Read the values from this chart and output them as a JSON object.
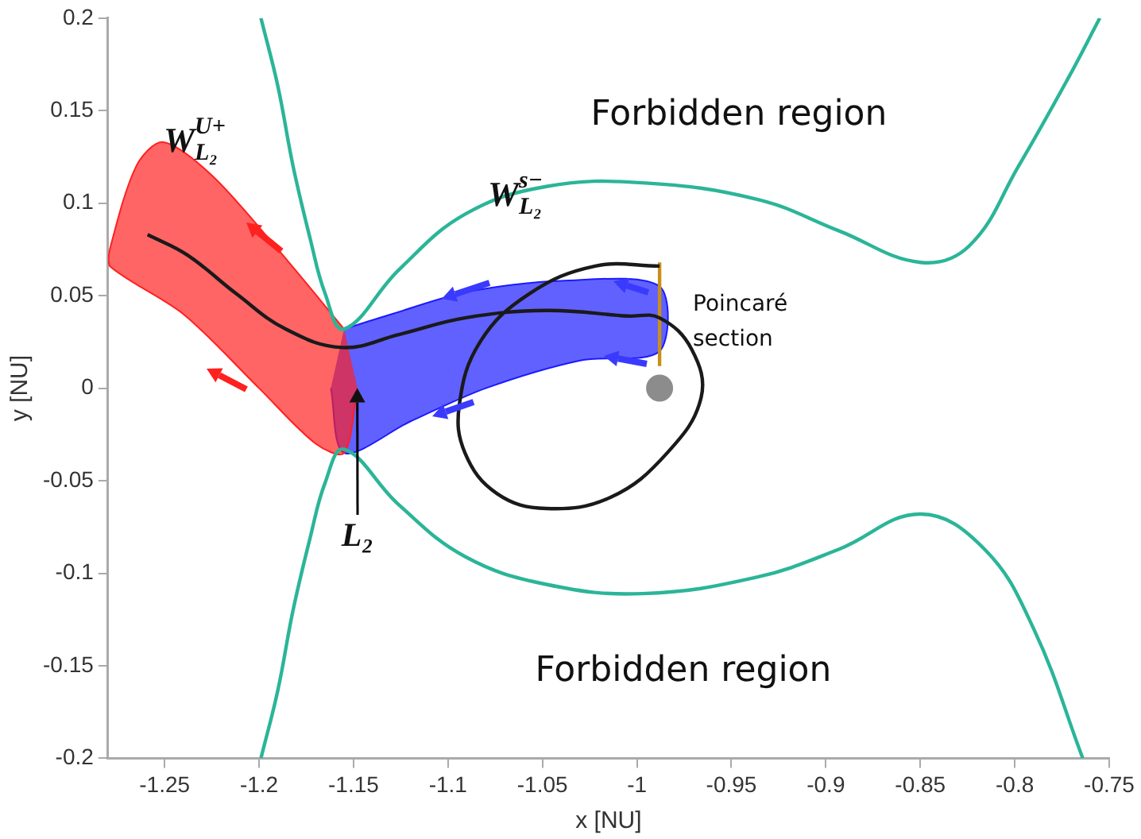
{
  "chart_data": {
    "type": "line",
    "xlabel": "x [NU]",
    "ylabel": "y [NU]",
    "xlim": [
      -1.28,
      -0.75
    ],
    "xticks": [
      -1.25,
      -1.2,
      -1.15,
      -1.1,
      -1.05,
      -1,
      -0.95,
      -0.9,
      -0.85,
      -0.8,
      -0.75
    ],
    "ylim": [
      -0.2,
      0.2
    ],
    "yticks": [
      -0.2,
      -0.15,
      -0.1,
      -0.05,
      0,
      0.05,
      0.1,
      0.15,
      0.2
    ],
    "grid": false,
    "legend": false,
    "series": [
      {
        "type": "area",
        "color": "#ff2020",
        "x": [
          -1.155,
          -1.19,
          -1.225,
          -1.251,
          -1.265,
          -1.279,
          -1.279,
          -1.24,
          -1.2,
          -1.17,
          -1.155,
          -1.148
        ],
        "values": [
          0.032,
          0.075,
          0.115,
          0.133,
          0.12,
          0.075,
          0.066,
          0.04,
          0.0,
          -0.03,
          -0.035,
          0.0
        ]
      },
      {
        "type": "area",
        "color": "#1a1aff",
        "x": [
          -1.155,
          -1.13,
          -1.09,
          -1.04,
          -0.988,
          -0.988,
          -1.03,
          -1.08,
          -1.12,
          -1.155,
          -1.162
        ],
        "values": [
          0.032,
          0.04,
          0.052,
          0.058,
          0.055,
          0.02,
          0.015,
          0.0,
          -0.018,
          -0.035,
          0.0
        ]
      },
      {
        "type": "line",
        "color": "#2bb598",
        "x": [
          -1.199,
          -1.19,
          -1.182,
          -1.173,
          -1.165,
          -1.155,
          -1.126,
          -1.091,
          -1.048,
          -0.997,
          -0.936,
          -0.893,
          -0.85,
          -0.824,
          -0.798,
          -0.772,
          -0.755
        ],
        "values": [
          0.2,
          0.163,
          0.12,
          0.081,
          0.051,
          0.032,
          0.064,
          0.094,
          0.109,
          0.111,
          0.102,
          0.085,
          0.068,
          0.077,
          0.12,
          0.167,
          0.2
        ]
      },
      {
        "type": "line",
        "color": "#2bb598",
        "x": [
          -1.199,
          -1.19,
          -1.182,
          -1.173,
          -1.165,
          -1.155,
          -1.126,
          -1.091,
          -1.048,
          -0.997,
          -0.936,
          -0.893,
          -0.85,
          -0.816,
          -0.79,
          -0.764
        ],
        "values": [
          -0.2,
          -0.163,
          -0.12,
          -0.081,
          -0.051,
          -0.033,
          -0.063,
          -0.091,
          -0.106,
          -0.111,
          -0.102,
          -0.087,
          -0.068,
          -0.087,
          -0.13,
          -0.2
        ]
      },
      {
        "type": "line",
        "color": "#1a1a1a",
        "x": [
          -0.988,
          -1.022,
          -1.057,
          -1.083,
          -1.094,
          -1.091,
          -1.074,
          -1.048,
          -1.014,
          -0.984,
          -0.966,
          -0.971,
          -0.988,
          -1.005,
          -1.048,
          -1.091,
          -1.126,
          -1.156,
          -1.186,
          -1.212,
          -1.238,
          -1.259
        ],
        "values": [
          0.066,
          0.066,
          0.051,
          0.025,
          -0.009,
          -0.035,
          -0.057,
          -0.065,
          -0.059,
          -0.035,
          -0.005,
          0.021,
          0.038,
          0.039,
          0.042,
          0.038,
          0.029,
          0.022,
          0.032,
          0.051,
          0.072,
          0.083
        ]
      },
      {
        "type": "line",
        "color": "#c8901a",
        "x": [
          -0.988,
          -0.988
        ],
        "values": [
          0.012,
          0.068
        ]
      },
      {
        "type": "scatter",
        "color": "#8c8c8c",
        "x": [
          -0.988
        ],
        "values": [
          0.0
        ]
      }
    ],
    "annotations": [
      "Forbidden region",
      "Forbidden region",
      "W$_{L₂}$$^{U+}$",
      "W$_{L₂}$$^{s−}$",
      {
        "text": "L₂",
        "x": -1.148,
        "y": 0.0
      },
      "Poincaré\nsection"
    ]
  }
}
